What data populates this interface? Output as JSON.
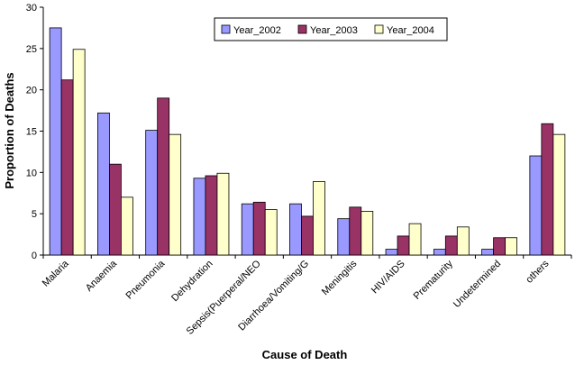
{
  "chart_data": {
    "type": "bar",
    "title": "",
    "xlabel": "Cause of Death",
    "ylabel": "Proportion of Deaths",
    "ylim": [
      0,
      30
    ],
    "yticks": [
      0,
      5,
      10,
      15,
      20,
      25,
      30
    ],
    "categories": [
      "Malaria",
      "Anaemia",
      "Pneumonia",
      "Dehydration",
      "Sepsis(Puerperal/NEO",
      "Diarrhoea/Vomiting/G",
      "Meningitis",
      "HIV/AIDS",
      "Prematurity",
      "Undetermined",
      "others"
    ],
    "series": [
      {
        "name": "Year_2002",
        "color": "#9999FF",
        "values": [
          27.5,
          17.2,
          15.1,
          9.3,
          6.2,
          6.2,
          4.4,
          0.7,
          0.7,
          0.7,
          12.0
        ]
      },
      {
        "name": "Year_2003",
        "color": "#993366",
        "values": [
          21.2,
          11.0,
          19.0,
          9.6,
          6.4,
          4.7,
          5.8,
          2.3,
          2.3,
          2.1,
          15.9
        ]
      },
      {
        "name": "Year_2004",
        "color": "#FFFFCC",
        "values": [
          24.9,
          7.0,
          14.6,
          9.9,
          5.5,
          8.9,
          5.3,
          3.8,
          3.4,
          2.1,
          14.6
        ]
      }
    ],
    "legend_position": "top-right",
    "grid": false
  }
}
